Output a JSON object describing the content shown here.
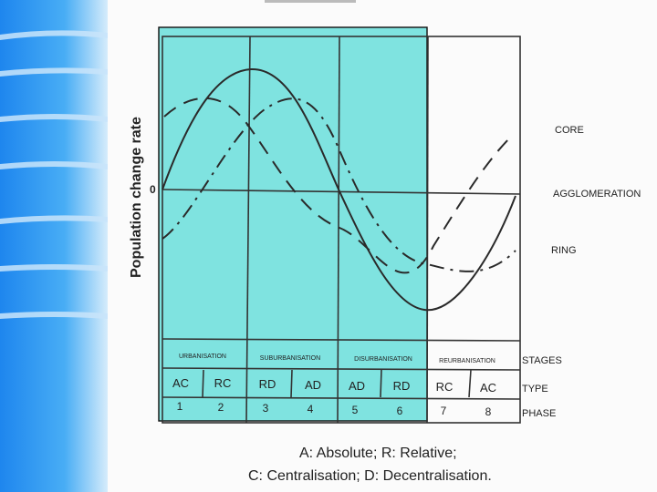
{
  "diagram": {
    "y_axis_label": "Population change rate",
    "zero_label": "0",
    "curve_labels": {
      "core": "CORE",
      "agglomeration": "AGGLOMERATION",
      "ring": "RING"
    },
    "row_labels": {
      "stages": "STAGES",
      "type": "TYPE",
      "phase": "PHASE"
    },
    "stages": [
      "URBANISATION",
      "SUBURBANISATION",
      "DISURBANISATION",
      "REURBANISATION"
    ],
    "types": [
      "AC",
      "RC",
      "RD",
      "AD",
      "AD",
      "RD",
      "RC",
      "AC"
    ],
    "phases": [
      "1",
      "2",
      "3",
      "4",
      "5",
      "6",
      "7",
      "8"
    ],
    "highlight_color": "#7fe3e0"
  },
  "caption": {
    "line1": "A: Absolute; R: Relative;",
    "line2": "C: Centralisation; D: Decentralisation."
  },
  "theme": {
    "sidebar_color": "#2f9cf0"
  }
}
